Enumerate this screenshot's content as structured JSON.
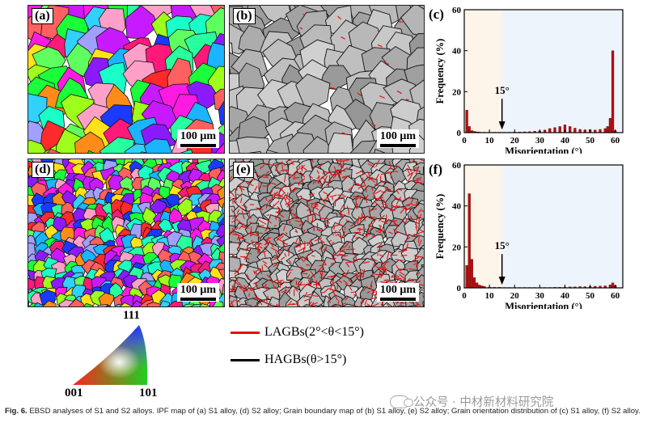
{
  "panels": {
    "a": {
      "label": "(a)",
      "scale": "100 μm"
    },
    "b": {
      "label": "(b)",
      "scale": "100 μm"
    },
    "d": {
      "label": "(d)",
      "scale": "100 μm"
    },
    "e": {
      "label": "(e)",
      "scale": "100 μm"
    },
    "c": {
      "label": "(c)"
    },
    "f": {
      "label": "(f)"
    }
  },
  "ipf_key": {
    "top": "111",
    "left": "001",
    "right": "101"
  },
  "legend": {
    "lagb": "LAGBs(2°<θ<15°)",
    "hagb": "HAGBs(θ>15°)",
    "lagb_color": "#e01010",
    "hagb_color": "#000000"
  },
  "chart_data": [
    {
      "type": "bar",
      "panel": "(c)",
      "xlabel": "Misorientation (°)",
      "ylabel": "Frequency (%)",
      "xlim": [
        0,
        63
      ],
      "ylim": [
        0,
        60
      ],
      "xticks": [
        0,
        10,
        20,
        30,
        40,
        50,
        60
      ],
      "yticks": [
        0,
        20,
        40,
        60
      ],
      "annotation": "15°",
      "annotation_x": 15,
      "x": [
        1,
        2,
        3,
        4,
        5,
        6,
        8,
        10,
        12,
        14,
        16,
        18,
        20,
        22,
        24,
        26,
        28,
        30,
        32,
        34,
        36,
        38,
        40,
        42,
        44,
        46,
        48,
        50,
        52,
        54,
        56,
        57,
        58,
        59,
        60
      ],
      "values": [
        11,
        3,
        1,
        0.6,
        0.4,
        0.3,
        0.2,
        0.2,
        0.2,
        0.2,
        0.2,
        0.2,
        0.3,
        0.3,
        0.4,
        0.5,
        0.7,
        0.9,
        1.3,
        2,
        2.5,
        3,
        3.8,
        3,
        2.2,
        1.6,
        1.4,
        1.5,
        1.3,
        1.6,
        2,
        3,
        7,
        40,
        1
      ]
    },
    {
      "type": "bar",
      "panel": "(f)",
      "xlabel": "Misorientation (°)",
      "ylabel": "Frequency (%)",
      "xlim": [
        0,
        63
      ],
      "ylim": [
        0,
        60
      ],
      "xticks": [
        0,
        10,
        20,
        30,
        40,
        50,
        60
      ],
      "yticks": [
        0,
        20,
        40,
        60
      ],
      "annotation": "15°",
      "annotation_x": 15,
      "x": [
        1,
        2,
        3,
        4,
        5,
        6,
        7,
        8,
        10,
        12,
        14,
        16,
        18,
        20,
        22,
        24,
        26,
        28,
        30,
        32,
        34,
        36,
        38,
        40,
        42,
        44,
        46,
        48,
        50,
        52,
        54,
        56,
        58,
        59,
        60
      ],
      "values": [
        11,
        46,
        14,
        5,
        2.5,
        1.4,
        1,
        0.7,
        0.4,
        0.3,
        0.3,
        0.2,
        0.2,
        0.2,
        0.2,
        0.2,
        0.2,
        0.2,
        0.2,
        0.2,
        0.2,
        0.3,
        0.3,
        0.4,
        0.5,
        0.5,
        0.6,
        0.6,
        0.7,
        0.8,
        0.9,
        1,
        1.5,
        2.5,
        1.2
      ]
    }
  ],
  "caption": {
    "fig": "Fig. 6.",
    "text": " EBSD analyses of S1 and S2 alloys. IPF map of (a) S1 alloy, (d) S2 alloy; Grain boundary map of (b) S1 alloy, (e) S2 alloy; Grain orientation distribution of (c) S1 alloy, (f) S2 alloy."
  },
  "watermark": "公众号 · 中材新材料研究院"
}
